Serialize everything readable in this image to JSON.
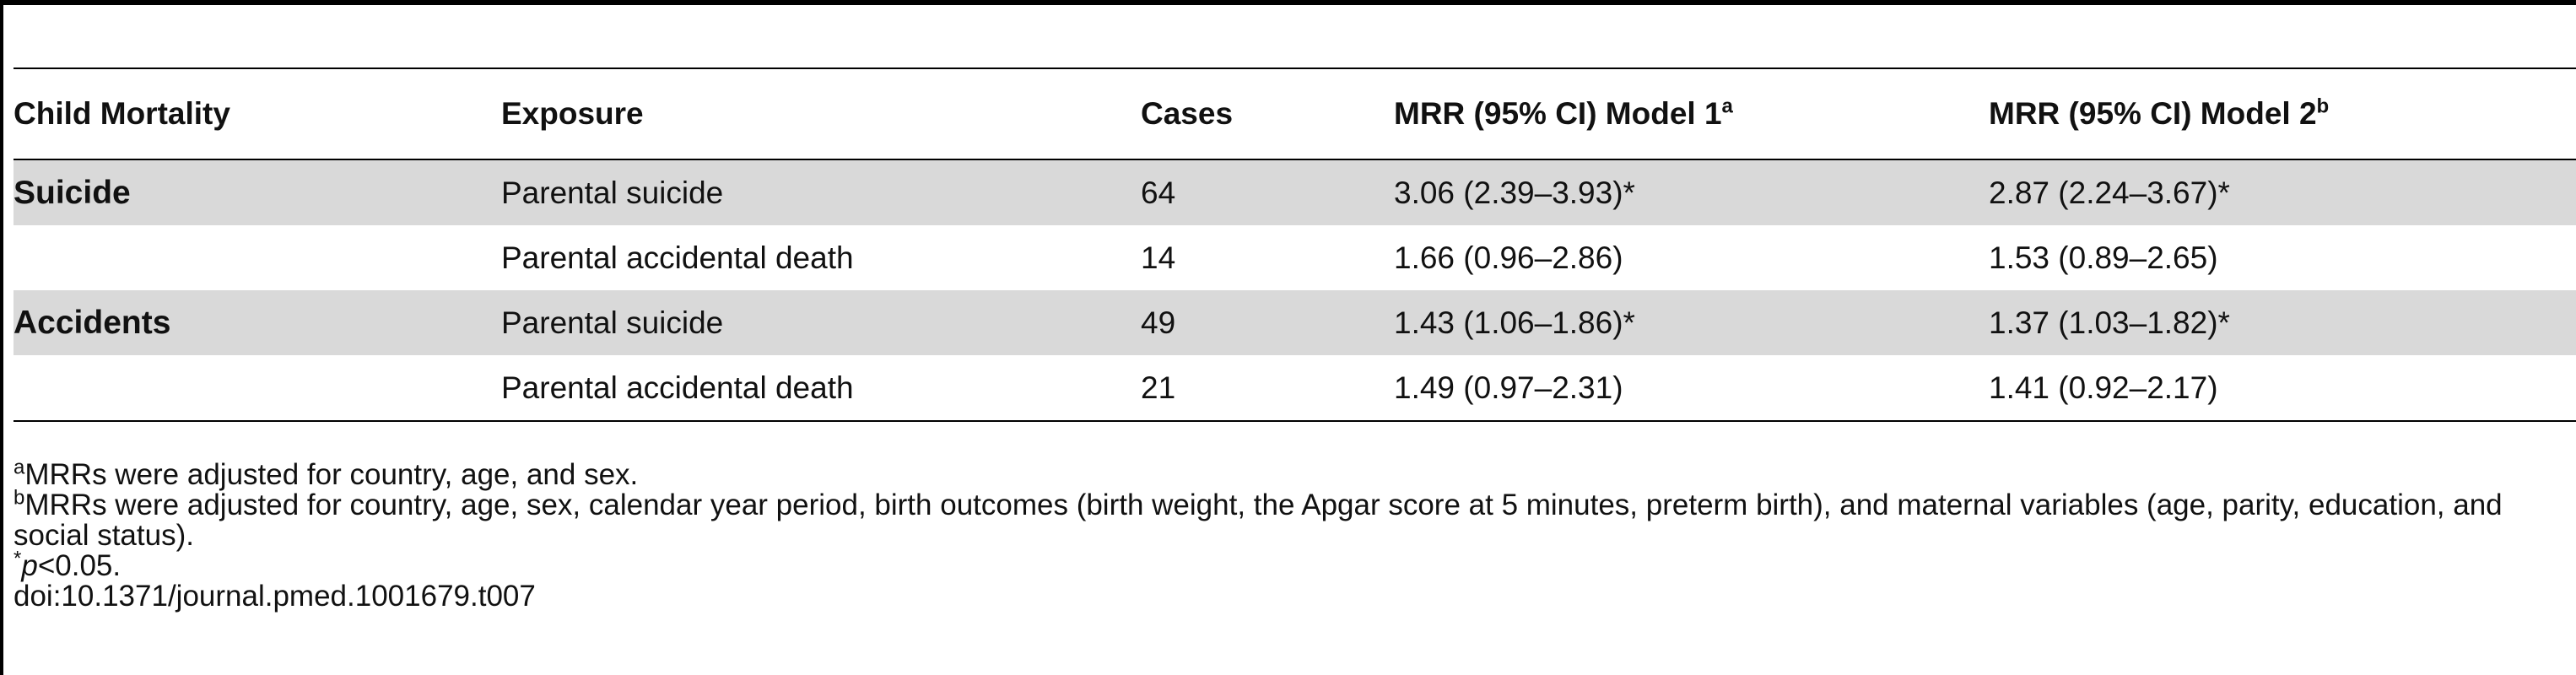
{
  "table": {
    "headers": [
      {
        "label": "Child Mortality",
        "sup": ""
      },
      {
        "label": "Exposure",
        "sup": ""
      },
      {
        "label": "Cases",
        "sup": ""
      },
      {
        "label": "MRR (95% CI) Model 1",
        "sup": "a"
      },
      {
        "label": "MRR (95% CI) Model 2",
        "sup": "b"
      }
    ],
    "rows": [
      {
        "category": "Suicide",
        "exposure": "Parental suicide",
        "cases": "64",
        "model1": "3.06 (2.39–3.93)*",
        "model2": "2.87 (2.24–3.67)*"
      },
      {
        "category": "",
        "exposure": "Parental accidental death",
        "cases": "14",
        "model1": "1.66 (0.96–2.86)",
        "model2": "1.53 (0.89–2.65)"
      },
      {
        "category": "Accidents",
        "exposure": "Parental suicide",
        "cases": "49",
        "model1": "1.43 (1.06–1.86)*",
        "model2": "1.37 (1.03–1.82)*"
      },
      {
        "category": "",
        "exposure": "Parental accidental death",
        "cases": "21",
        "model1": "1.49 (0.97–2.31)",
        "model2": "1.41 (0.92–2.17)"
      }
    ]
  },
  "footnotes": {
    "a_marker": "a",
    "a_text": "MRRs were adjusted for country, age, and sex.",
    "b_marker": "b",
    "b_text": "MRRs were adjusted for country, age, sex, calendar year period, birth outcomes (birth weight, the Apgar score at 5 minutes, preterm birth), and maternal variables (age, parity, education, and social status).",
    "star_marker": "*",
    "star_var": "p",
    "star_text": "<0.05.",
    "doi": "doi:10.1371/journal.pmed.1001679.t007"
  }
}
